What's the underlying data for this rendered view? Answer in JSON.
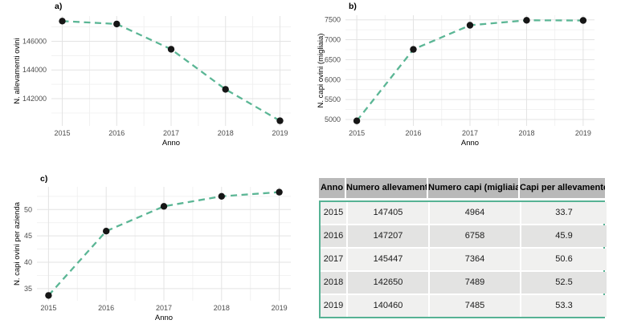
{
  "colors": {
    "accent": "#5bb695",
    "point": "#161616",
    "grid_major": "#e3e3e3",
    "grid_minor": "#f0f0f0",
    "tick_text": "#4d4d4d",
    "axis_title_text": "#000000",
    "panel_label_text": "#000000",
    "table_header_bg": "#b9b9b9",
    "table_row_light": "#f0f0ef",
    "table_row_dark": "#e3e3e2",
    "table_border": "#56b294"
  },
  "chart_data": [
    {
      "id": "a",
      "panel_label": "a)",
      "type": "line",
      "line_style": "dashed",
      "marker": "point",
      "x": [
        2015,
        2016,
        2017,
        2018,
        2019
      ],
      "y": [
        147405,
        147207,
        145447,
        142650,
        140460
      ],
      "xlabel": "Anno",
      "ylabel": "N. allevamenti ovini",
      "xticks": [
        2015,
        2016,
        2017,
        2018,
        2019
      ],
      "xminor": [
        2015.5,
        2016.5,
        2017.5,
        2018.5
      ],
      "yticks_major": [
        142000,
        144000,
        146000
      ],
      "yticks_minor": [
        141000,
        143000,
        145000,
        147000
      ],
      "xlim": [
        2014.8,
        2019.2
      ],
      "ylim": [
        140100,
        147760
      ],
      "grid": true,
      "legend": false
    },
    {
      "id": "b",
      "panel_label": "b)",
      "type": "line",
      "line_style": "dashed",
      "marker": "point",
      "x": [
        2015,
        2016,
        2017,
        2018,
        2019
      ],
      "y": [
        4964,
        6758,
        7364,
        7489,
        7485
      ],
      "xlabel": "Anno",
      "ylabel": "N. capi ovini (migliaia)",
      "xticks": [
        2015,
        2016,
        2017,
        2018,
        2019
      ],
      "xminor": [
        2015.5,
        2016.5,
        2017.5,
        2018.5
      ],
      "yticks_major": [
        5000,
        5500,
        6000,
        6500,
        7000,
        7500
      ],
      "yticks_minor": [
        5250,
        5750,
        6250,
        6750,
        7250
      ],
      "xlim": [
        2014.8,
        2019.2
      ],
      "ylim": [
        4838,
        7615
      ],
      "grid": true,
      "legend": false
    },
    {
      "id": "c",
      "panel_label": "c)",
      "type": "line",
      "line_style": "dashed",
      "marker": "point",
      "x": [
        2015,
        2016,
        2017,
        2018,
        2019
      ],
      "y": [
        33.7,
        45.9,
        50.6,
        52.5,
        53.3
      ],
      "xlabel": "Anno",
      "ylabel": "N. capi ovini per azienda",
      "xticks": [
        2015,
        2016,
        2017,
        2018,
        2019
      ],
      "xminor": [
        2015.5,
        2016.5,
        2017.5,
        2018.5
      ],
      "yticks_major": [
        35,
        40,
        45,
        50
      ],
      "yticks_minor": [
        37.5,
        42.5,
        47.5,
        52.5
      ],
      "xlim": [
        2014.8,
        2019.2
      ],
      "ylim": [
        32.7,
        54.3
      ],
      "grid": true,
      "legend": false
    },
    {
      "id": "table",
      "type": "table",
      "headers": [
        "Anno",
        "Numero allevamenti",
        "Numero capi (migliaia)",
        "Capi per allevamento"
      ],
      "rows": [
        [
          "2015",
          "147405",
          "4964",
          "33.7"
        ],
        [
          "2016",
          "147207",
          "6758",
          "45.9"
        ],
        [
          "2017",
          "145447",
          "7364",
          "50.6"
        ],
        [
          "2018",
          "142650",
          "7489",
          "52.5"
        ],
        [
          "2019",
          "140460",
          "7485",
          "53.3"
        ]
      ]
    }
  ]
}
